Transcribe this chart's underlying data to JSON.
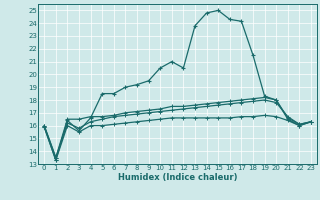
{
  "xlabel": "Humidex (Indice chaleur)",
  "bg_color": "#cfe9e9",
  "line_color": "#1a6b6b",
  "grid_color": "#ffffff",
  "xlim": [
    -0.5,
    23.5
  ],
  "ylim": [
    13,
    25.5
  ],
  "yticks": [
    13,
    14,
    15,
    16,
    17,
    18,
    19,
    20,
    21,
    22,
    23,
    24,
    25
  ],
  "xticks": [
    0,
    1,
    2,
    3,
    4,
    5,
    6,
    7,
    8,
    9,
    10,
    11,
    12,
    13,
    14,
    15,
    16,
    17,
    18,
    19,
    20,
    21,
    22,
    23
  ],
  "line1_y": [
    15.9,
    13.3,
    16.4,
    15.6,
    16.6,
    18.5,
    18.5,
    19.0,
    19.2,
    19.5,
    20.5,
    21.0,
    20.5,
    23.8,
    24.8,
    25.0,
    24.3,
    24.15,
    21.5,
    18.3,
    18.0,
    16.5,
    16.0,
    16.3
  ],
  "line2_y": [
    16.0,
    13.5,
    16.5,
    16.5,
    16.7,
    16.7,
    16.8,
    17.0,
    17.1,
    17.2,
    17.3,
    17.5,
    17.5,
    17.6,
    17.7,
    17.8,
    17.9,
    18.0,
    18.1,
    18.2,
    18.0,
    16.6,
    16.1,
    16.3
  ],
  "line3_y": [
    16.0,
    13.5,
    16.2,
    15.8,
    16.3,
    16.5,
    16.7,
    16.8,
    16.9,
    17.0,
    17.1,
    17.2,
    17.3,
    17.4,
    17.5,
    17.6,
    17.7,
    17.8,
    17.9,
    18.0,
    17.8,
    16.7,
    16.1,
    16.3
  ],
  "line4_y": [
    15.9,
    13.3,
    16.0,
    15.5,
    16.0,
    16.0,
    16.1,
    16.2,
    16.3,
    16.4,
    16.5,
    16.6,
    16.6,
    16.6,
    16.6,
    16.6,
    16.6,
    16.7,
    16.7,
    16.8,
    16.7,
    16.4,
    16.0,
    16.3
  ]
}
